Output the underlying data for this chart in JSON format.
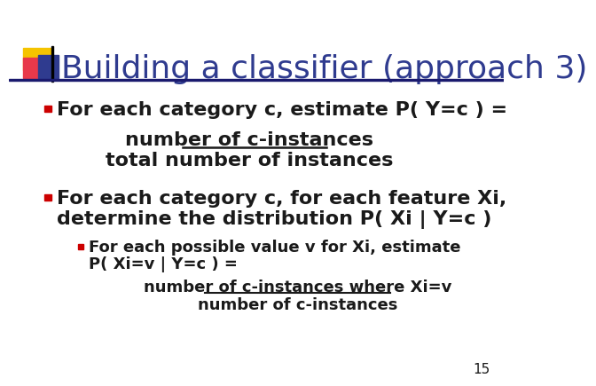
{
  "title": "Building a classifier (approach 3)",
  "title_color": "#2F3B8F",
  "title_fontsize": 26,
  "background_color": "#FFFFFF",
  "slide_number": "15",
  "bullet1_text": "For each category c, estimate P( Y=c ) =",
  "bullet1_line1_under": "number of c-instances",
  "bullet1_line2": "total number of instances",
  "bullet2_text_line1": "For each category c, for each feature Xi,",
  "bullet2_text_line2": "determine the distribution P( Xi | Y=c )",
  "sub_bullet1_line1": "For each possible value v for Xi, estimate",
  "sub_bullet1_line2": "P( Xi=v | Y=c ) =",
  "sub_bullet_frac_top_under": "number of c-instances where Xi=v",
  "sub_bullet_frac_bottom": "number of c-instances",
  "bullet_color": "#CC0000",
  "text_color": "#1A1A1A",
  "header_bar_color": "#1A1A6E",
  "logo_yellow": "#F5C400",
  "logo_red": "#E8394A",
  "logo_blue": "#2F3B8F",
  "logo_blue_dark": "#1A1A6E"
}
